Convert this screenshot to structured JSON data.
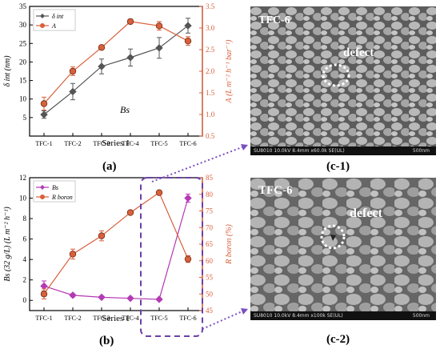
{
  "panels": {
    "a": "(a)",
    "b": "(b)",
    "c1": "(c-1)",
    "c2": "(c-2)"
  },
  "chart_data": [
    {
      "type": "line",
      "xlabel": "Series 1",
      "ylabel_left": "δ int (nm)",
      "ylabel_right": "A (L m⁻² h⁻¹ bar⁻¹)",
      "annotation": "Bs",
      "categories": [
        "TFC-1",
        "TFC-2",
        "TFC-3",
        "TFC-4",
        "TFC-5",
        "TFC-6"
      ],
      "ylim_left": [
        0,
        35
      ],
      "yticks_left": [
        5,
        10,
        15,
        20,
        25,
        30,
        35
      ],
      "ylim_right": [
        0.5,
        3.5
      ],
      "yticks_right": [
        "0.5",
        "1.0",
        "1.5",
        "2.0",
        "2.5",
        "3.0",
        "3.5"
      ],
      "legend": "top-left",
      "series": [
        {
          "name": "δ int",
          "axis": "left",
          "color": "#555555",
          "marker": "diamond",
          "values": [
            5.8,
            12.0,
            18.8,
            21.2,
            23.8,
            29.8
          ],
          "errors": [
            1.0,
            2.2,
            2.0,
            2.3,
            2.8,
            2.0
          ]
        },
        {
          "name": "A",
          "axis": "right",
          "color": "#d9603b",
          "marker": "circle",
          "values": [
            1.25,
            2.0,
            2.55,
            3.15,
            3.05,
            2.7
          ],
          "errors": [
            0.15,
            0.1,
            0.05,
            0.05,
            0.1,
            0.1
          ]
        }
      ]
    },
    {
      "type": "line",
      "xlabel": "Series 1",
      "ylabel_left": "Bs (32 g/L) (L m⁻² h⁻¹)",
      "ylabel_right": "R boron (%)",
      "categories": [
        "TFC-1",
        "TFC-2",
        "TFC-3",
        "TFC-4",
        "TFC-5",
        "TFC-6"
      ],
      "ylim_left": [
        -1,
        12
      ],
      "yticks_left": [
        0,
        2,
        4,
        6,
        8,
        10,
        12
      ],
      "ylim_right": [
        45,
        85
      ],
      "yticks_right": [
        45,
        50,
        55,
        60,
        65,
        70,
        75,
        80,
        85
      ],
      "legend": "top-left",
      "series": [
        {
          "name": "Bs",
          "axis": "left",
          "color": "#b43ab4",
          "marker": "diamond",
          "values": [
            1.4,
            0.5,
            0.3,
            0.2,
            0.1,
            10.0
          ],
          "errors": [
            0.5,
            0.15,
            0.1,
            0.1,
            0.1,
            0.4
          ]
        },
        {
          "name": "R boron",
          "axis": "right",
          "color": "#d9603b",
          "marker": "circle",
          "values": [
            50.0,
            62.0,
            67.5,
            74.5,
            80.5,
            60.5
          ],
          "errors": [
            1.5,
            1.5,
            1.5,
            0.5,
            0.5,
            1.0
          ]
        }
      ]
    }
  ],
  "sem": {
    "c1": {
      "label": "TFC-6",
      "defect": "defect",
      "bar": "SU8010 10.0kV 8.4mm x60.0k SE(UL)",
      "scale": "500nm"
    },
    "c2": {
      "label": "TFC-6",
      "defect": "defect",
      "bar": "SU8010 10.0kV 8.4mm x100k SE(UL)",
      "scale": "500nm"
    }
  }
}
